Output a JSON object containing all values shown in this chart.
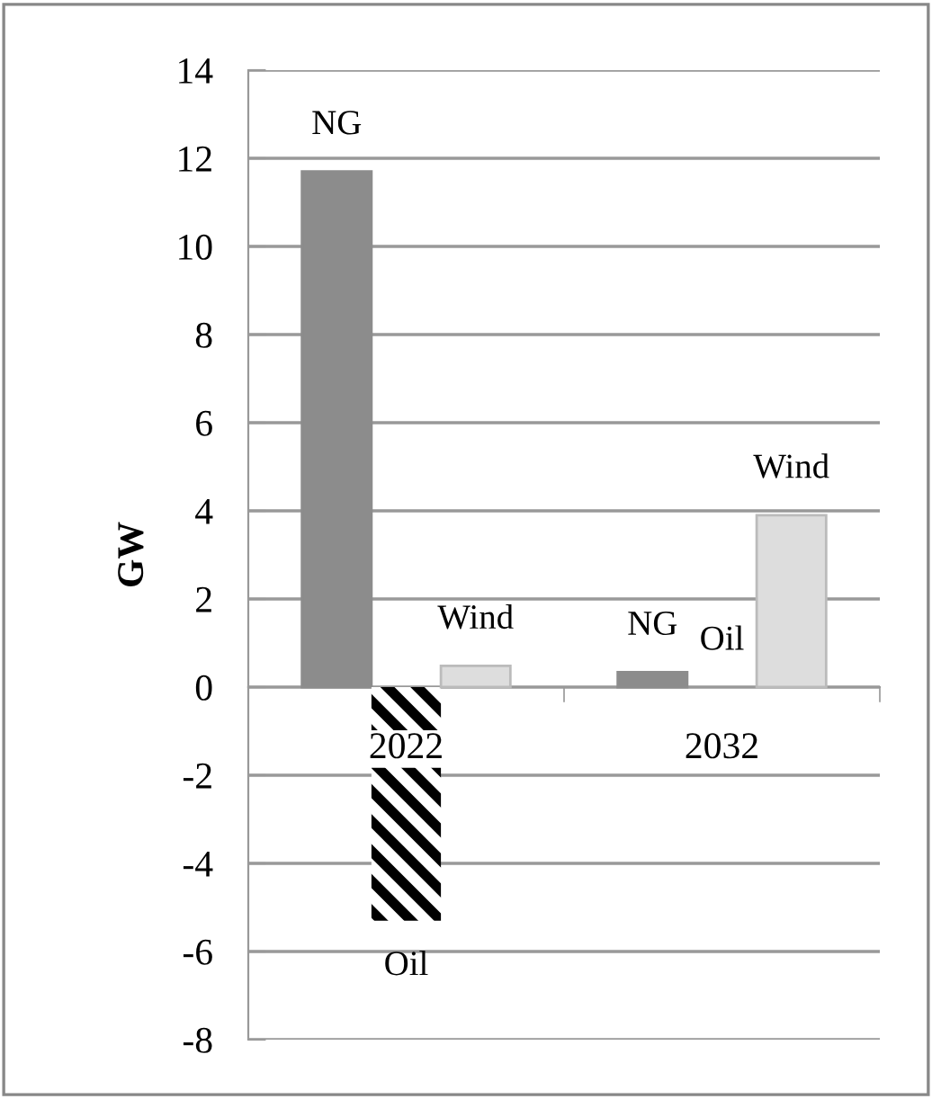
{
  "chart_data": {
    "type": "bar",
    "ylabel": "GW",
    "categories": [
      "2022",
      "2032"
    ],
    "series": [
      {
        "name": "NG",
        "color": "#8c8c8c",
        "values": [
          11.7,
          0.34
        ]
      },
      {
        "name": "Oil",
        "color": "#000000",
        "values": [
          -5.3,
          0
        ]
      },
      {
        "name": "Wind",
        "color": "#dddddd",
        "values": [
          0.48,
          3.9
        ]
      }
    ],
    "ylim": [
      -8,
      14
    ],
    "yticks": [
      -8,
      -6,
      -4,
      -2,
      0,
      2,
      4,
      6,
      8,
      10,
      12,
      14
    ],
    "grid": "y",
    "legend": false
  }
}
